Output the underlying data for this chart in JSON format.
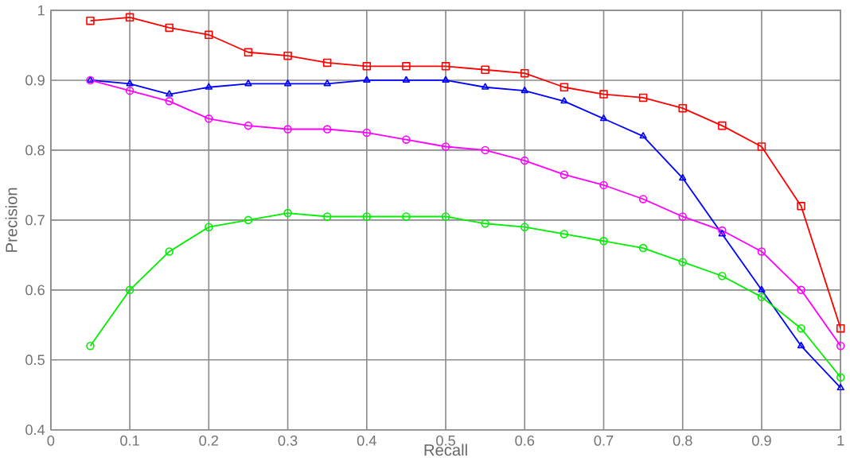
{
  "chart_data": {
    "type": "line",
    "xlabel": "Recall",
    "ylabel": "Precision",
    "x": [
      0.05,
      0.1,
      0.15,
      0.2,
      0.25,
      0.3,
      0.35,
      0.4,
      0.45,
      0.5,
      0.55,
      0.6,
      0.65,
      0.7,
      0.75,
      0.8,
      0.85,
      0.9,
      0.95,
      1
    ],
    "series": [
      {
        "color": "#ff0000",
        "marker": "square",
        "values": [
          0.985,
          0.99,
          0.975,
          0.965,
          0.94,
          0.935,
          0.925,
          0.92,
          0.92,
          0.92,
          0.915,
          0.91,
          0.89,
          0.88,
          0.875,
          0.86,
          0.835,
          0.805,
          0.72,
          0.545
        ]
      },
      {
        "color": "#0000ff",
        "marker": "triangle",
        "values": [
          0.9,
          0.895,
          0.88,
          0.89,
          0.895,
          0.895,
          0.895,
          0.9,
          0.9,
          0.9,
          0.89,
          0.885,
          0.87,
          0.845,
          0.82,
          0.76,
          0.68,
          0.6,
          0.52,
          0.46
        ]
      },
      {
        "color": "#ff00ff",
        "marker": "circle",
        "values": [
          0.9,
          0.885,
          0.87,
          0.845,
          0.835,
          0.83,
          0.83,
          0.825,
          0.815,
          0.805,
          0.8,
          0.785,
          0.765,
          0.75,
          0.73,
          0.705,
          0.685,
          0.655,
          0.6,
          0.52
        ]
      },
      {
        "color": "#00ee00",
        "marker": "circle",
        "values": [
          0.52,
          0.6,
          0.655,
          0.69,
          0.7,
          0.71,
          0.705,
          0.705,
          0.705,
          0.705,
          0.695,
          0.69,
          0.68,
          0.67,
          0.66,
          0.64,
          0.62,
          0.59,
          0.545,
          0.475
        ]
      }
    ],
    "xlim": [
      0,
      1
    ],
    "ylim": [
      0.4,
      1
    ],
    "xticks": [
      0,
      0.1,
      0.2,
      0.3,
      0.4,
      0.5,
      0.6,
      0.7,
      0.8,
      0.9,
      1
    ],
    "yticks": [
      0.4,
      0.5,
      0.6,
      0.7,
      0.8,
      0.9,
      1
    ],
    "grid": true,
    "line_style": "solid"
  }
}
